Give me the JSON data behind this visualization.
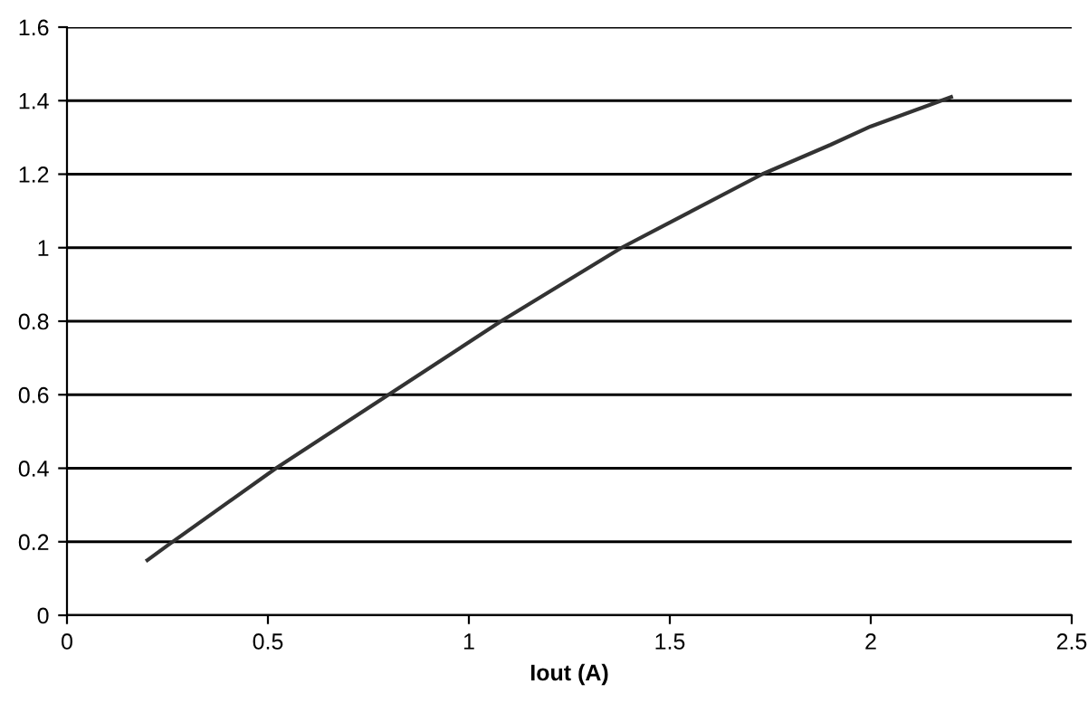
{
  "chart_data": {
    "type": "line",
    "xlabel": "Iout (A)",
    "series": [
      {
        "color": "#333333",
        "x": [
          0.2,
          0.25,
          0.52,
          0.8,
          1.08,
          1.38,
          1.73,
          1.9,
          2.0,
          2.2
        ],
        "values": [
          0.15,
          0.19,
          0.4,
          0.6,
          0.8,
          1.0,
          1.2,
          1.28,
          1.33,
          1.41
        ]
      }
    ],
    "xlim": [
      0,
      2.5
    ],
    "xticks": [
      0,
      0.5,
      1,
      1.5,
      2,
      2.5
    ],
    "ylim": [
      0,
      1.6
    ],
    "yticks": [
      0,
      0.2,
      0.4,
      0.6,
      0.8,
      1,
      1.2,
      1.4,
      1.6
    ],
    "grid": "y",
    "marker": "none",
    "line_style": "solid",
    "legend": false
  }
}
